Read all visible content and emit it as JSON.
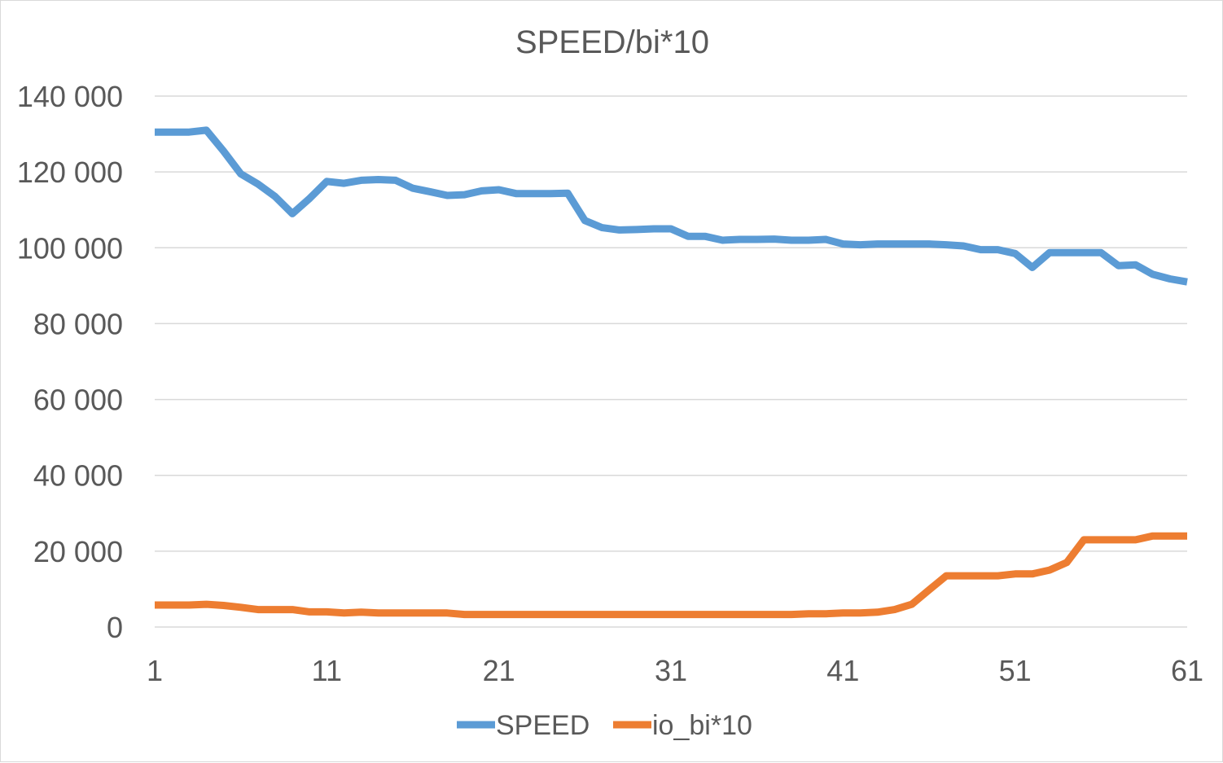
{
  "chart_data": {
    "type": "line",
    "title": "SPEED/bi*10",
    "xlabel": "",
    "ylabel": "",
    "ylim": [
      0,
      140000
    ],
    "y_ticks": [
      0,
      20000,
      40000,
      60000,
      80000,
      100000,
      120000,
      140000
    ],
    "y_tick_labels": [
      "0",
      "20 000",
      "40 000",
      "60 000",
      "80 000",
      "100 000",
      "120 000",
      "140 000"
    ],
    "x": [
      1,
      2,
      3,
      4,
      5,
      6,
      7,
      8,
      9,
      10,
      11,
      12,
      13,
      14,
      15,
      16,
      17,
      18,
      19,
      20,
      21,
      22,
      23,
      24,
      25,
      26,
      27,
      28,
      29,
      30,
      31,
      32,
      33,
      34,
      35,
      36,
      37,
      38,
      39,
      40,
      41,
      42,
      43,
      44,
      45,
      46,
      47,
      48,
      49,
      50,
      51,
      52,
      53,
      54,
      55,
      56,
      57,
      58,
      59,
      60,
      61
    ],
    "x_tick_labels": [
      "1",
      "11",
      "21",
      "31",
      "41",
      "51",
      "61"
    ],
    "grid": true,
    "legend_position": "bottom",
    "series": [
      {
        "name": "SPEED",
        "color": "#5b9bd5",
        "values": [
          130500,
          130500,
          130500,
          131000,
          125500,
          119500,
          116800,
          113500,
          109000,
          113000,
          117500,
          117000,
          117800,
          118000,
          117800,
          115700,
          114800,
          113800,
          114000,
          115000,
          115300,
          114300,
          114300,
          114300,
          114400,
          107200,
          105300,
          104700,
          104800,
          105000,
          105000,
          103000,
          103000,
          102000,
          102200,
          102200,
          102300,
          102000,
          102000,
          102200,
          101000,
          100800,
          101000,
          101000,
          101000,
          101000,
          100800,
          100500,
          99500,
          99500,
          98500,
          94800,
          98700,
          98700,
          98700,
          98700,
          95300,
          95500,
          93000,
          91800,
          91000
        ]
      },
      {
        "name": "io_bi*10",
        "color": "#ed7d31",
        "values": [
          5800,
          5800,
          5800,
          6000,
          5700,
          5200,
          4600,
          4600,
          4600,
          4000,
          4000,
          3700,
          3900,
          3700,
          3700,
          3700,
          3700,
          3700,
          3300,
          3300,
          3300,
          3300,
          3300,
          3300,
          3300,
          3300,
          3300,
          3300,
          3300,
          3300,
          3300,
          3300,
          3300,
          3300,
          3300,
          3300,
          3300,
          3300,
          3500,
          3500,
          3700,
          3700,
          3900,
          4600,
          6000,
          9800,
          13500,
          13500,
          13500,
          13500,
          14000,
          14000,
          15000,
          17000,
          23000,
          23000,
          23000,
          23000,
          24000,
          24000,
          24000
        ]
      }
    ]
  }
}
